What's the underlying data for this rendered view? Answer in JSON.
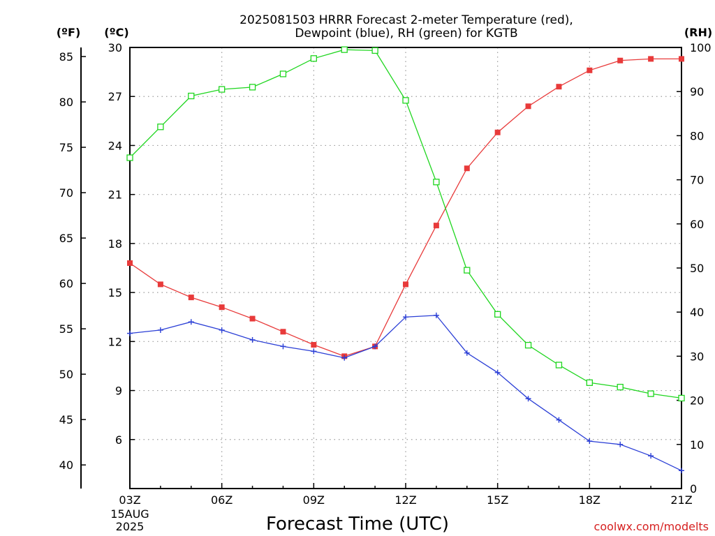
{
  "title": {
    "line1": "2025081503 HRRR Forecast 2-meter Temperature (red),",
    "line2": "Dewpoint (blue), RH (green) for KGTB"
  },
  "axes": {
    "f_label": "(ºF)",
    "c_label": "(ºC)",
    "rh_label": "(RH)",
    "f_ticks": [
      "85",
      "80",
      "75",
      "70",
      "65",
      "60",
      "55",
      "50",
      "45",
      "40"
    ],
    "c_ticks": [
      "30",
      "27",
      "24",
      "21",
      "18",
      "15",
      "12",
      "9",
      "6"
    ],
    "rh_ticks": [
      "100",
      "90",
      "80",
      "70",
      "60",
      "50",
      "40",
      "30",
      "20",
      "10",
      "0"
    ],
    "date_line1": "15AUG",
    "date_line2": "2025"
  },
  "footer": {
    "xlabel": "Forecast Time (UTC)",
    "credit": "coolwx.com/modelts"
  },
  "colors": {
    "temperature": "#e83a3a",
    "dewpoint": "#2b3fd6",
    "rh": "#1fd61f",
    "grid": "#9a9a9a"
  },
  "chart_data": {
    "type": "line",
    "title": "2025081503 HRRR Forecast 2-meter Temperature (red), Dewpoint (blue), RH (green) for KGTB",
    "xlabel": "Forecast Time (UTC)",
    "x": [
      "03Z",
      "04Z",
      "05Z",
      "06Z",
      "07Z",
      "08Z",
      "09Z",
      "10Z",
      "11Z",
      "12Z",
      "13Z",
      "14Z",
      "15Z",
      "16Z",
      "17Z",
      "18Z",
      "19Z",
      "20Z",
      "21Z"
    ],
    "x_tick_labels": [
      "03Z",
      "06Z",
      "09Z",
      "12Z",
      "15Z",
      "18Z",
      "21Z"
    ],
    "c_range": [
      3,
      30
    ],
    "rh_range": [
      0,
      100
    ],
    "f_range": [
      37.4,
      86
    ],
    "grid": true,
    "series": [
      {
        "name": "Temperature",
        "axis": "C",
        "marker": "filled-square",
        "values": [
          16.8,
          15.5,
          14.7,
          14.1,
          13.4,
          12.6,
          11.8,
          11.1,
          11.7,
          15.5,
          19.1,
          22.6,
          24.8,
          26.4,
          27.6,
          28.6,
          29.2,
          29.3,
          29.3
        ]
      },
      {
        "name": "Dewpoint",
        "axis": "C",
        "marker": "plus",
        "values": [
          12.5,
          12.7,
          13.2,
          12.7,
          12.1,
          11.7,
          11.4,
          11.0,
          11.7,
          13.5,
          13.6,
          11.3,
          10.1,
          8.5,
          7.2,
          5.9,
          5.7,
          5.0,
          4.1
        ]
      },
      {
        "name": "RH",
        "axis": "RH",
        "marker": "open-square",
        "values": [
          75,
          82,
          89,
          90.5,
          91,
          94,
          97.5,
          99.5,
          99.3,
          88,
          69.5,
          49.5,
          39.5,
          32.5,
          28,
          24,
          23,
          21.5,
          20.5
        ]
      }
    ]
  }
}
